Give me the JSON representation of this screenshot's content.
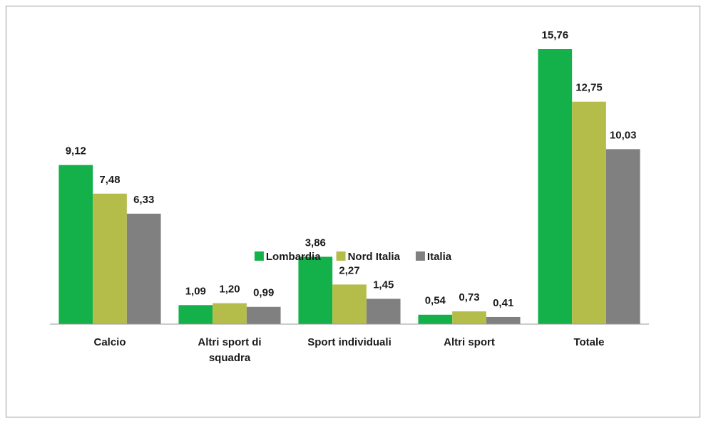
{
  "chart_data": {
    "type": "bar",
    "categories": [
      "Calcio",
      "Altri sport di squadra",
      "Sport individuali",
      "Altri sport",
      "Totale"
    ],
    "series": [
      {
        "name": "Lombardia",
        "color": "#14b04a",
        "values": [
          9.12,
          1.09,
          3.86,
          0.54,
          15.76
        ],
        "value_labels": [
          "9,12",
          "1,09",
          "3,86",
          "0,54",
          "15,76"
        ]
      },
      {
        "name": "Nord Italia",
        "color": "#b5bd4a",
        "values": [
          7.48,
          1.2,
          2.27,
          0.73,
          12.75
        ],
        "value_labels": [
          "7,48",
          "1,20",
          "2,27",
          "0,73",
          "12,75"
        ]
      },
      {
        "name": "Italia",
        "color": "#808080",
        "values": [
          6.33,
          0.99,
          1.45,
          0.41,
          10.03
        ],
        "value_labels": [
          "6,33",
          "0,99",
          "1,45",
          "0,41",
          "10,03"
        ]
      }
    ],
    "legend": "bottom"
  }
}
